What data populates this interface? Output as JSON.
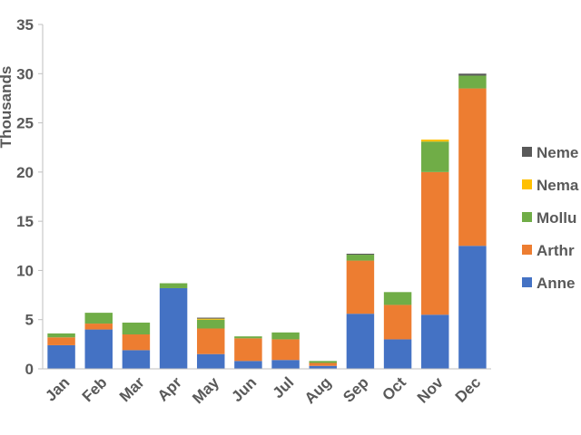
{
  "chart_data": {
    "type": "bar",
    "stacked": true,
    "ylabel": "Thousands",
    "ylim": [
      0,
      35
    ],
    "yticks": [
      0,
      5,
      10,
      15,
      20,
      25,
      30,
      35
    ],
    "grid": false,
    "legend_position": "right",
    "categories": [
      "Jan",
      "Feb",
      "Mar",
      "Apr",
      "May",
      "Jun",
      "Jul",
      "Aug",
      "Sep",
      "Oct",
      "Nov",
      "Dec"
    ],
    "series": [
      {
        "name": "Anne",
        "color": "#4472C4",
        "values": [
          2.4,
          4.0,
          1.9,
          8.2,
          1.5,
          0.8,
          0.9,
          0.3,
          5.6,
          3.0,
          5.5,
          12.5
        ]
      },
      {
        "name": "Arthr",
        "color": "#ED7D31",
        "values": [
          0.8,
          0.6,
          1.6,
          0.0,
          2.6,
          2.3,
          2.1,
          0.3,
          5.4,
          3.5,
          14.5,
          16.0
        ]
      },
      {
        "name": "Mollu",
        "color": "#70AD47",
        "values": [
          0.4,
          1.1,
          1.2,
          0.5,
          0.9,
          0.2,
          0.7,
          0.2,
          0.6,
          1.3,
          3.1,
          1.3
        ]
      },
      {
        "name": "Nema",
        "color": "#FFC000",
        "values": [
          0.0,
          0.0,
          0.0,
          0.0,
          0.1,
          0.0,
          0.0,
          0.0,
          0.0,
          0.0,
          0.2,
          0.0
        ]
      },
      {
        "name": "Neme",
        "color": "#595959",
        "values": [
          0.0,
          0.0,
          0.0,
          0.0,
          0.1,
          0.0,
          0.0,
          0.0,
          0.1,
          0.0,
          0.0,
          0.2
        ]
      }
    ]
  }
}
